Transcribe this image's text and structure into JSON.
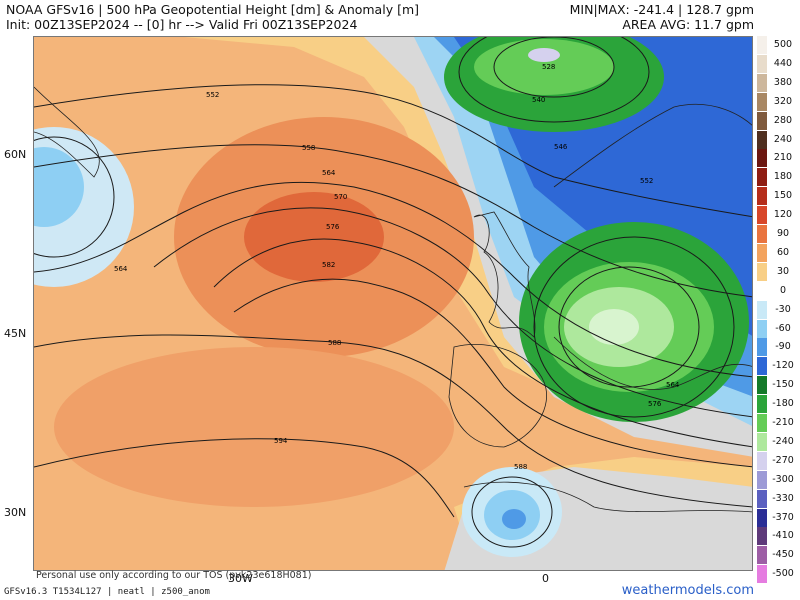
{
  "header": {
    "title_line1": "NOAA GFSv16 | 500 hPa Geopotential Height [dm] & Anomaly [m]",
    "title_line2": "Init: 00Z13SEP2024 -- [0] hr --> Valid Fri 00Z13SEP2024",
    "stats_line1": "MIN|MAX: -241.4 | 128.7 gpm",
    "stats_line2": "AREA AVG: 11.7 gpm"
  },
  "axes": {
    "lat_labels": [
      "60N",
      "45N",
      "30N"
    ],
    "lon_labels": [
      "30W",
      "0"
    ]
  },
  "contour_labels": [
    "552",
    "558",
    "564",
    "570",
    "576",
    "582",
    "588",
    "594",
    "588",
    "564",
    "528",
    "546",
    "552",
    "564",
    "576",
    "540"
  ],
  "footer": {
    "model_info": "GFSv16.3 T1534L127 | neatl | z500_anom",
    "tos_text": "Personal use only according to our TOS (pvk23e618H081)",
    "brand": "weathermodels.com"
  },
  "colorbar": {
    "labels": [
      "500",
      "440",
      "380",
      "320",
      "280",
      "240",
      "210",
      "180",
      "150",
      "120",
      "90",
      "60",
      "30",
      "0",
      "-30",
      "-60",
      "-90",
      "-120",
      "-150",
      "-180",
      "-210",
      "-240",
      "-270",
      "-300",
      "-330",
      "-370",
      "-410",
      "-450",
      "-500"
    ],
    "colors": [
      "#f5f0ea",
      "#e8dccb",
      "#cdb79c",
      "#a88763",
      "#7f5a3d",
      "#4f2f1f",
      "#6b1710",
      "#8e1d12",
      "#b52d1b",
      "#d8472a",
      "#e9743f",
      "#f3a35e",
      "#f8cf86",
      "#ffffff",
      "#c9e9f7",
      "#8ecff3",
      "#4f9ae6",
      "#2e68d6",
      "#157a2a",
      "#2ba43a",
      "#64cc57",
      "#aee89d",
      "#d5d1ee",
      "#9c9ad6",
      "#5b60c0",
      "#2b2e96",
      "#5e3a7a",
      "#9d5ea5",
      "#e57ce0"
    ]
  }
}
